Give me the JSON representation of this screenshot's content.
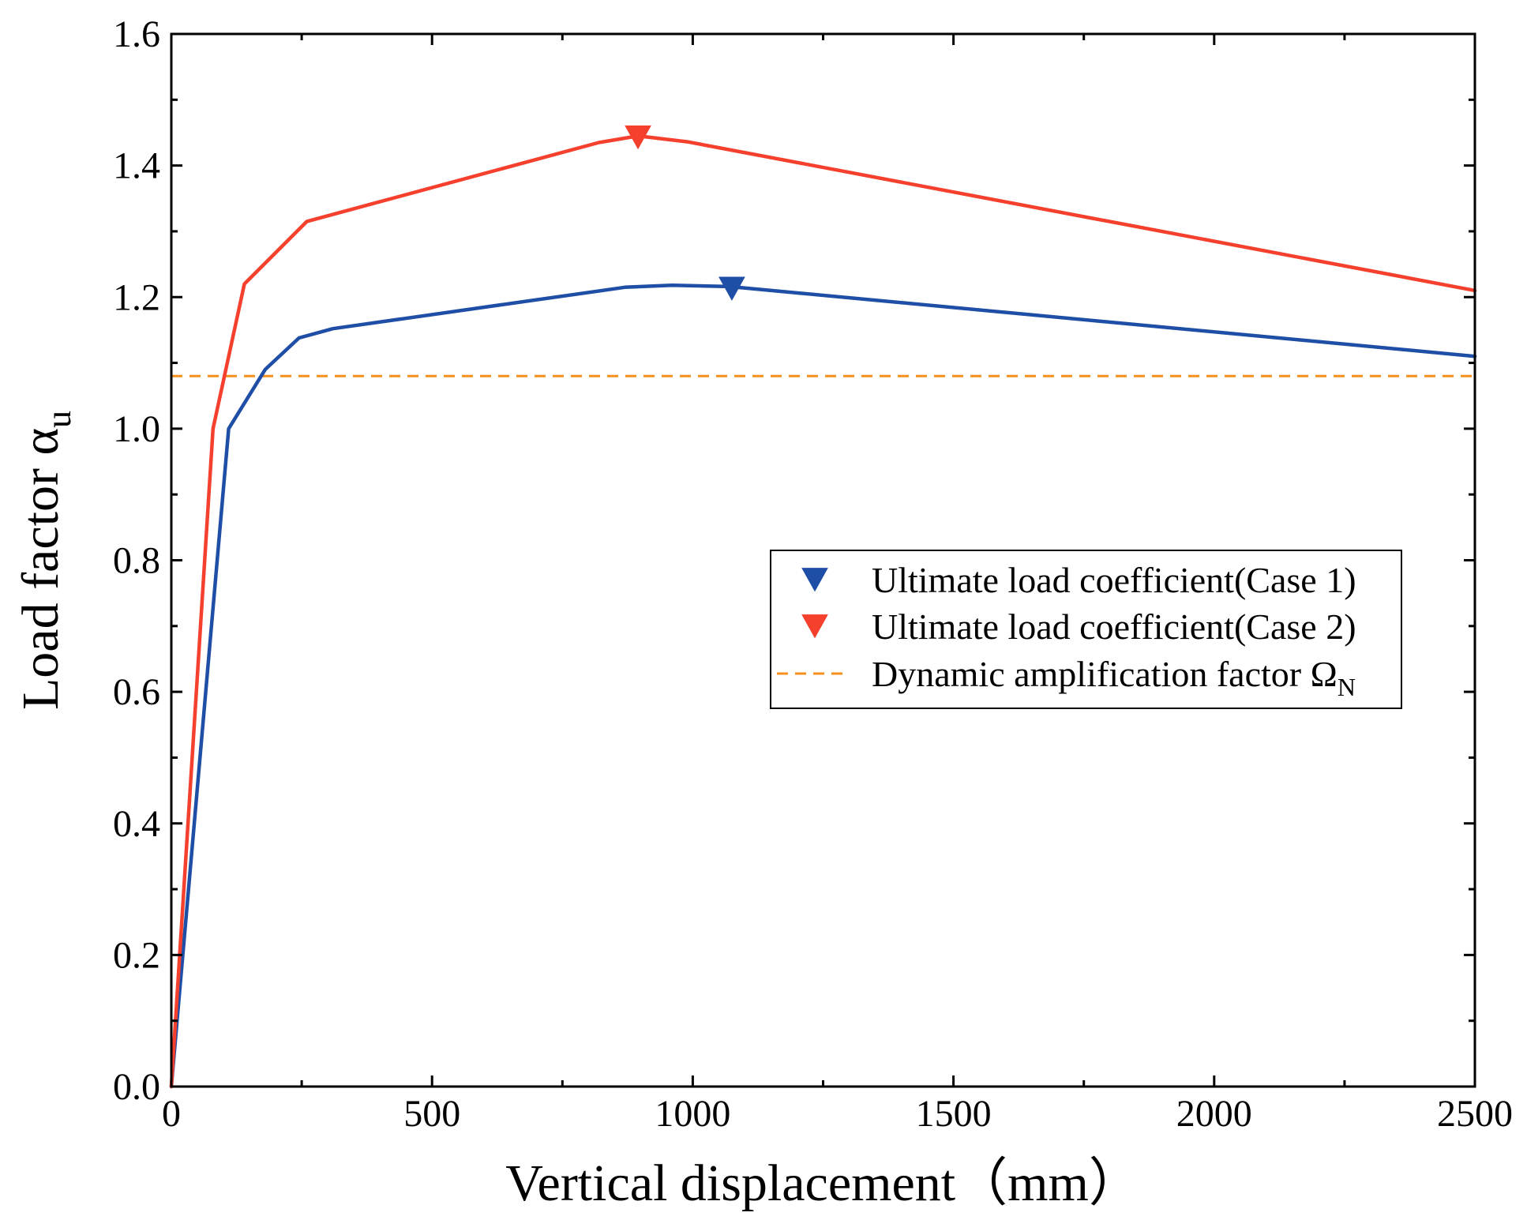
{
  "chart_data": {
    "type": "line",
    "title": "",
    "xlabel": "Vertical displacement（mm）",
    "ylabel": "Load factor α",
    "ylabel_sub": "u",
    "xlim": [
      0,
      2500
    ],
    "ylim": [
      0.0,
      1.6
    ],
    "xticks": [
      0,
      500,
      1000,
      1500,
      2000,
      2500
    ],
    "xtick_labels": [
      "0",
      "500",
      "1000",
      "1500",
      "2000",
      "2500"
    ],
    "yticks": [
      0.0,
      0.2,
      0.4,
      0.6,
      0.8,
      1.0,
      1.2,
      1.4,
      1.6
    ],
    "ytick_labels": [
      "0.0",
      "0.2",
      "0.4",
      "0.6",
      "0.8",
      "1.0",
      "1.2",
      "1.4",
      "1.6"
    ],
    "grid": false,
    "legend_position": "center-right",
    "series": [
      {
        "name": "Case 1",
        "color": "#1f4ea6",
        "x": [
          0,
          110,
          180,
          245,
          310,
          870,
          960,
          1070,
          2500
        ],
        "y": [
          0.0,
          1.0,
          1.09,
          1.138,
          1.152,
          1.215,
          1.218,
          1.216,
          1.11
        ]
      },
      {
        "name": "Case 2",
        "color": "#f5402d",
        "x": [
          0,
          80,
          140,
          260,
          820,
          895,
          990,
          2500
        ],
        "y": [
          0.0,
          1.0,
          1.22,
          1.315,
          1.435,
          1.445,
          1.436,
          1.21
        ]
      }
    ],
    "markers": [
      {
        "label": "Ultimate load coefficient(Case 1)",
        "x": 1075,
        "y": 1.213,
        "color": "#1f4ea6",
        "shape": "triangle-down"
      },
      {
        "label": "Ultimate load coefficient(Case 2)",
        "x": 895,
        "y": 1.443,
        "color": "#f5402d",
        "shape": "triangle-down"
      }
    ],
    "reference_lines": [
      {
        "label": "Dynamic amplification factor Ω",
        "label_sub": "N",
        "y": 1.08,
        "color": "#f5901e",
        "style": "dashed"
      }
    ]
  }
}
